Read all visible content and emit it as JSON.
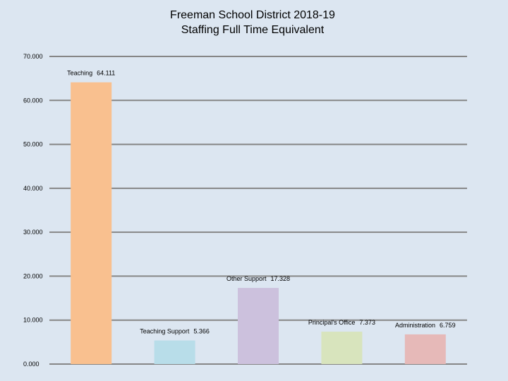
{
  "chart_data": {
    "type": "bar",
    "title": "Freeman School District 2018-19",
    "subtitle": "Staffing Full Time Equivalent",
    "categories": [
      "Teaching",
      "Teaching Support",
      "Other Support",
      "Principal's Office",
      "Administration"
    ],
    "values": [
      64.111,
      5.366,
      17.328,
      7.373,
      6.759
    ],
    "colors": [
      "#f9c08f",
      "#b8dde9",
      "#ccc1dd",
      "#d8e4bd",
      "#e6b9b8"
    ],
    "ylim": [
      0,
      70
    ],
    "yticks": [
      {
        "value": 0,
        "label": "0.000"
      },
      {
        "value": 10,
        "label": "10.000"
      },
      {
        "value": 20,
        "label": "20.000"
      },
      {
        "value": 30,
        "label": "30.000"
      },
      {
        "value": 40,
        "label": "40.000"
      },
      {
        "value": 50,
        "label": "50.000"
      },
      {
        "value": 60,
        "label": "60.000"
      },
      {
        "value": 70,
        "label": "70.000"
      }
    ],
    "grid": true
  }
}
